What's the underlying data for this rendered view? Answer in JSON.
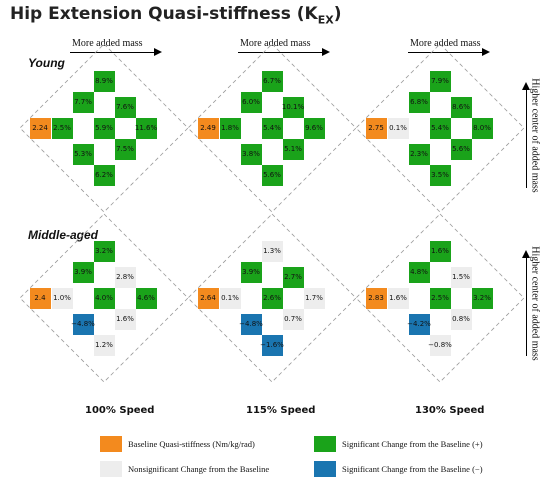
{
  "title": "Hip Extension Quasi-stiffness (K",
  "title_sub": "EX",
  "title_close": ")",
  "row_labels": [
    "Young",
    "Middle-aged"
  ],
  "mass_arrow_label": "More added mass",
  "center_arrow_label": "Higher center of added mass",
  "speed_labels": [
    "100% Speed",
    "115% Speed",
    "130% Speed"
  ],
  "colors": {
    "baseline": "#f38a1e",
    "significant_pos": "#1aa31a",
    "nonsignificant": "#ededed",
    "significant_neg": "#1a75b0"
  },
  "legend": [
    {
      "label": "Baseline Quasi-stiffness (Nm/kg/rad)",
      "type": "base"
    },
    {
      "label": "Significant Change from the Baseline (+)",
      "type": "sig"
    },
    {
      "label": "Nonsignificant Change from the Baseline",
      "type": "ns"
    },
    {
      "label": "Significant Change from the Baseline (−)",
      "type": "neg"
    }
  ],
  "panels": [
    {
      "row": 0,
      "col": 0,
      "cells": [
        {
          "pos": "p1",
          "value": "8.9%",
          "type": "sig"
        },
        {
          "pos": "p2",
          "value": "7.7%",
          "type": "sig"
        },
        {
          "pos": "p3",
          "value": "7.6%",
          "type": "sig"
        },
        {
          "pos": "b",
          "value": "2.24",
          "type": "base"
        },
        {
          "pos": "p4",
          "value": "2.5%",
          "type": "sig"
        },
        {
          "pos": "p5",
          "value": "5.9%",
          "type": "sig"
        },
        {
          "pos": "p6",
          "value": "11.6%",
          "type": "sig"
        },
        {
          "pos": "p7",
          "value": "7.5%",
          "type": "sig"
        },
        {
          "pos": "p8",
          "value": "5.3%",
          "type": "sig"
        },
        {
          "pos": "p9",
          "value": "6.2%",
          "type": "sig"
        }
      ]
    },
    {
      "row": 0,
      "col": 1,
      "cells": [
        {
          "pos": "p1",
          "value": "6.7%",
          "type": "sig"
        },
        {
          "pos": "p2",
          "value": "6.0%",
          "type": "sig"
        },
        {
          "pos": "p3",
          "value": "10.1%",
          "type": "sig"
        },
        {
          "pos": "b",
          "value": "2.49",
          "type": "base"
        },
        {
          "pos": "p4",
          "value": "1.8%",
          "type": "sig"
        },
        {
          "pos": "p5",
          "value": "5.4%",
          "type": "sig"
        },
        {
          "pos": "p6",
          "value": "9.6%",
          "type": "sig"
        },
        {
          "pos": "p7",
          "value": "5.1%",
          "type": "sig"
        },
        {
          "pos": "p8",
          "value": "3.8%",
          "type": "sig"
        },
        {
          "pos": "p9",
          "value": "5.6%",
          "type": "sig"
        }
      ]
    },
    {
      "row": 0,
      "col": 2,
      "cells": [
        {
          "pos": "p1",
          "value": "7.9%",
          "type": "sig"
        },
        {
          "pos": "p2",
          "value": "6.8%",
          "type": "sig"
        },
        {
          "pos": "p3",
          "value": "8.6%",
          "type": "sig"
        },
        {
          "pos": "b",
          "value": "2.75",
          "type": "base"
        },
        {
          "pos": "p4",
          "value": "0.1%",
          "type": "ns"
        },
        {
          "pos": "p5",
          "value": "5.4%",
          "type": "sig"
        },
        {
          "pos": "p6",
          "value": "8.0%",
          "type": "sig"
        },
        {
          "pos": "p7",
          "value": "5.6%",
          "type": "sig"
        },
        {
          "pos": "p8",
          "value": "2.3%",
          "type": "sig"
        },
        {
          "pos": "p9",
          "value": "3.5%",
          "type": "sig"
        }
      ]
    },
    {
      "row": 1,
      "col": 0,
      "cells": [
        {
          "pos": "p1",
          "value": "3.2%",
          "type": "sig"
        },
        {
          "pos": "p2",
          "value": "3.9%",
          "type": "sig"
        },
        {
          "pos": "p3",
          "value": "2.8%",
          "type": "ns"
        },
        {
          "pos": "b",
          "value": "2.4",
          "type": "base"
        },
        {
          "pos": "p4",
          "value": "1.0%",
          "type": "ns"
        },
        {
          "pos": "p5",
          "value": "4.0%",
          "type": "sig"
        },
        {
          "pos": "p6",
          "value": "4.6%",
          "type": "sig"
        },
        {
          "pos": "p7",
          "value": "1.6%",
          "type": "ns"
        },
        {
          "pos": "p8",
          "value": "−4.8%",
          "type": "neg"
        },
        {
          "pos": "p9",
          "value": "1.2%",
          "type": "ns"
        }
      ]
    },
    {
      "row": 1,
      "col": 1,
      "cells": [
        {
          "pos": "p1",
          "value": "1.3%",
          "type": "ns"
        },
        {
          "pos": "p2",
          "value": "3.9%",
          "type": "sig"
        },
        {
          "pos": "p3",
          "value": "2.7%",
          "type": "sig"
        },
        {
          "pos": "b",
          "value": "2.64",
          "type": "base"
        },
        {
          "pos": "p4",
          "value": "0.1%",
          "type": "ns"
        },
        {
          "pos": "p5",
          "value": "2.6%",
          "type": "sig"
        },
        {
          "pos": "p6",
          "value": "1.7%",
          "type": "ns"
        },
        {
          "pos": "p7",
          "value": "0.7%",
          "type": "ns"
        },
        {
          "pos": "p8",
          "value": "−4.8%",
          "type": "neg"
        },
        {
          "pos": "p9",
          "value": "−1.6%",
          "type": "neg"
        }
      ]
    },
    {
      "row": 1,
      "col": 2,
      "cells": [
        {
          "pos": "p1",
          "value": "1.6%",
          "type": "sig"
        },
        {
          "pos": "p2",
          "value": "4.8%",
          "type": "sig"
        },
        {
          "pos": "p3",
          "value": "1.5%",
          "type": "ns"
        },
        {
          "pos": "b",
          "value": "2.83",
          "type": "base"
        },
        {
          "pos": "p4",
          "value": "1.6%",
          "type": "ns"
        },
        {
          "pos": "p5",
          "value": "2.5%",
          "type": "sig"
        },
        {
          "pos": "p6",
          "value": "3.2%",
          "type": "sig"
        },
        {
          "pos": "p7",
          "value": "0.8%",
          "type": "ns"
        },
        {
          "pos": "p8",
          "value": "−4.2%",
          "type": "neg"
        },
        {
          "pos": "p9",
          "value": "−0.8%",
          "type": "ns"
        }
      ]
    }
  ]
}
